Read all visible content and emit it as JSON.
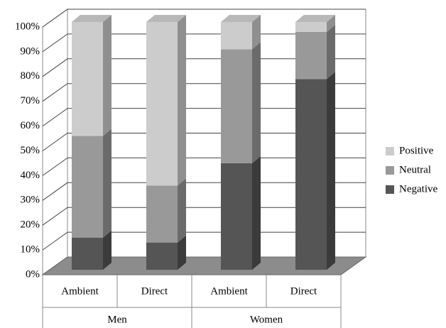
{
  "chart_data": {
    "type": "stacked-bar-3d",
    "categories": [
      "Ambient",
      "Direct",
      "Ambient",
      "Direct"
    ],
    "groups": [
      "Men",
      "Women"
    ],
    "series": [
      {
        "name": "Negative",
        "color": "#555555",
        "values": [
          13,
          11,
          43,
          77
        ]
      },
      {
        "name": "Neutral",
        "color": "#999999",
        "values": [
          41,
          23,
          46,
          19
        ]
      },
      {
        "name": "Positive",
        "color": "#cccccc",
        "values": [
          46,
          66,
          11,
          4
        ]
      }
    ],
    "ylim": [
      0,
      100
    ],
    "yticks": [
      {
        "value": 0,
        "label": "0%"
      },
      {
        "value": 10,
        "label": "10%"
      },
      {
        "value": 20,
        "label": "20%"
      },
      {
        "value": 30,
        "label": "30%"
      },
      {
        "value": 40,
        "label": "40%"
      },
      {
        "value": 50,
        "label": "50%"
      },
      {
        "value": 60,
        "label": "60%"
      },
      {
        "value": 70,
        "label": "70%"
      },
      {
        "value": 80,
        "label": "80%"
      },
      {
        "value": 90,
        "label": "90%"
      },
      {
        "value": 100,
        "label": "100%"
      }
    ],
    "grid": true,
    "legend": "right"
  }
}
